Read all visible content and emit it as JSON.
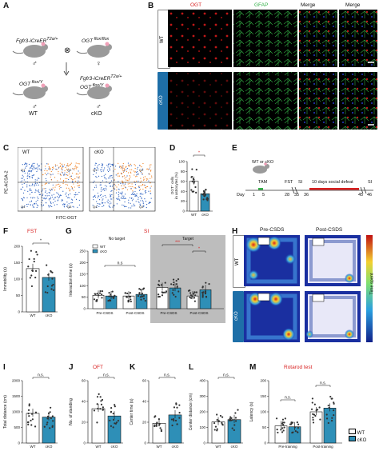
{
  "panels": {
    "A": {
      "label": "A",
      "parents": [
        {
          "line1": "Fgfr3-iCreER",
          "line1_sup": "T2a/+",
          "sex": "♂"
        },
        {
          "line1": "OGT",
          "line1_sup": " flox/flox",
          "sex": "♀"
        }
      ],
      "cross_symbol": "⊗",
      "offspring": [
        {
          "line1": "OGT",
          "line1_sup": " flox/Y",
          "sex": "♂",
          "group": "WT"
        },
        {
          "line1": "Fgfr3-iCreER",
          "line1_sup": "T2a/+",
          "line2": "OGT",
          "line2_sup": " flox/Y",
          "sex": "♂",
          "group": "cKO"
        }
      ]
    },
    "B": {
      "label": "B",
      "columns": [
        "OGT",
        "GFAP",
        "Merge",
        "Merge"
      ],
      "rows": [
        "WT",
        "cKO"
      ]
    },
    "C": {
      "label": "C",
      "groups": [
        "WT",
        "cKO"
      ],
      "ylabel": "PE-ACSA-2",
      "xlabel": "FITC-OGT",
      "quadrants": [
        "Q1",
        "Q2",
        "Q3",
        "Q4"
      ]
    },
    "D": {
      "label": "D",
      "ylabel": "OGT⁺ cells\nin astrocytes (%)",
      "sig": "*",
      "categories": [
        "WT",
        "cKO"
      ]
    },
    "E": {
      "label": "E",
      "mouse_label": "WT or cKO",
      "tam_label": "TAM",
      "fst_label": "FST",
      "si_label1": "SI",
      "social_label": "10 days social defeat",
      "si_label2": "SI",
      "day_prefix": "Day",
      "ticks": [
        "1",
        "5",
        "28",
        "35",
        "36",
        "45",
        "46"
      ]
    },
    "H": {
      "label": "H",
      "col_titles": [
        "Pre-CSDS",
        "Post-CSDS"
      ],
      "rows": [
        "WT",
        "cKO"
      ],
      "colorbar_label": "Time spent"
    },
    "F": {
      "label": "F",
      "title": "FST",
      "ylabel": "Immobility (s)",
      "sig": "*"
    },
    "G": {
      "label": "G",
      "title": "SI",
      "no_target": "No target",
      "target": "Target",
      "ylabel": "Interaction time (s)",
      "ns": "n.s",
      "sig_pre": "***",
      "sig_post": "*",
      "xcats": [
        "Pre-CSDS",
        "Post-CSDS",
        "Pre-CSDS",
        "Post-CSDS"
      ]
    },
    "I": {
      "label": "I",
      "ylabel": "Total distance (cm)",
      "sig": "n.s."
    },
    "J": {
      "label": "J",
      "title": "OFT",
      "ylabel": "No. of standing",
      "sig": "n.s."
    },
    "K": {
      "label": "K",
      "ylabel": "Center time (s)",
      "sig": "n.s."
    },
    "L": {
      "label": "L",
      "ylabel": "Center distance (cm)",
      "sig": "n.s."
    },
    "M": {
      "label": "M",
      "title": "Rotarod test",
      "ylabel": "Latency (s)",
      "sig": "n.s.",
      "xcats": [
        "Pre-training",
        "Post-training"
      ]
    }
  },
  "legend": {
    "wt": "WT",
    "cko": "cKO",
    "wt_color": "#ffffff",
    "cko_color": "#2e8fb7"
  },
  "colors": {
    "accent_red": "#d82020",
    "cko_blue": "#2e8fb7",
    "gfap_green": "#35b24a",
    "ogt_red": "#d82020"
  },
  "chart_data": [
    {
      "panel": "D",
      "type": "bar",
      "categories": [
        "WT",
        "cKO"
      ],
      "values": [
        60,
        35
      ],
      "ylim": [
        0,
        100
      ],
      "yticks": [
        "0",
        "20",
        "40",
        "60",
        "80",
        "100"
      ]
    },
    {
      "panel": "F",
      "type": "bar",
      "categories": [
        "WT",
        "cKO"
      ],
      "values": [
        132,
        105
      ],
      "ylim": [
        0,
        200
      ],
      "yticks": [
        "0",
        "50",
        "100",
        "150",
        "200"
      ]
    },
    {
      "panel": "G",
      "type": "bar",
      "ylim": [
        0,
        250
      ],
      "yticks": [
        "0",
        "50",
        "100",
        "150",
        "200",
        "250"
      ],
      "categories": [
        "Pre-CSDS",
        "Post-CSDS",
        "Pre-CSDS",
        "Post-CSDS"
      ],
      "series": [
        {
          "name": "WT",
          "values": [
            58,
            55,
            92,
            55
          ]
        },
        {
          "name": "cKO",
          "values": [
            55,
            62,
            90,
            82
          ]
        }
      ]
    },
    {
      "panel": "I",
      "type": "bar",
      "categories": [
        "WT",
        "cKO"
      ],
      "values": [
        950,
        830
      ],
      "ylim": [
        0,
        2000
      ],
      "yticks": [
        "0",
        "500",
        "1000",
        "1500",
        "2000"
      ]
    },
    {
      "panel": "J",
      "type": "bar",
      "categories": [
        "WT",
        "cKO"
      ],
      "values": [
        33,
        26
      ],
      "ylim": [
        0,
        60
      ],
      "yticks": [
        "0",
        "20",
        "40",
        "60"
      ]
    },
    {
      "panel": "K",
      "type": "bar",
      "categories": [
        "WT",
        "cKO"
      ],
      "values": [
        19,
        27
      ],
      "ylim": [
        0,
        60
      ],
      "yticks": [
        "0",
        "20",
        "40",
        "60"
      ]
    },
    {
      "panel": "L",
      "type": "bar",
      "categories": [
        "WT",
        "cKO"
      ],
      "values": [
        135,
        150
      ],
      "ylim": [
        0,
        400
      ],
      "yticks": [
        "0",
        "100",
        "200",
        "300",
        "400"
      ]
    },
    {
      "panel": "M",
      "type": "bar",
      "ylim": [
        0,
        200
      ],
      "yticks": [
        "0",
        "50",
        "100",
        "150",
        "200"
      ],
      "categories": [
        "Pre-training",
        "Post-training"
      ],
      "series": [
        {
          "name": "WT",
          "values": [
            55,
            100
          ]
        },
        {
          "name": "cKO",
          "values": [
            52,
            112
          ]
        }
      ]
    }
  ]
}
